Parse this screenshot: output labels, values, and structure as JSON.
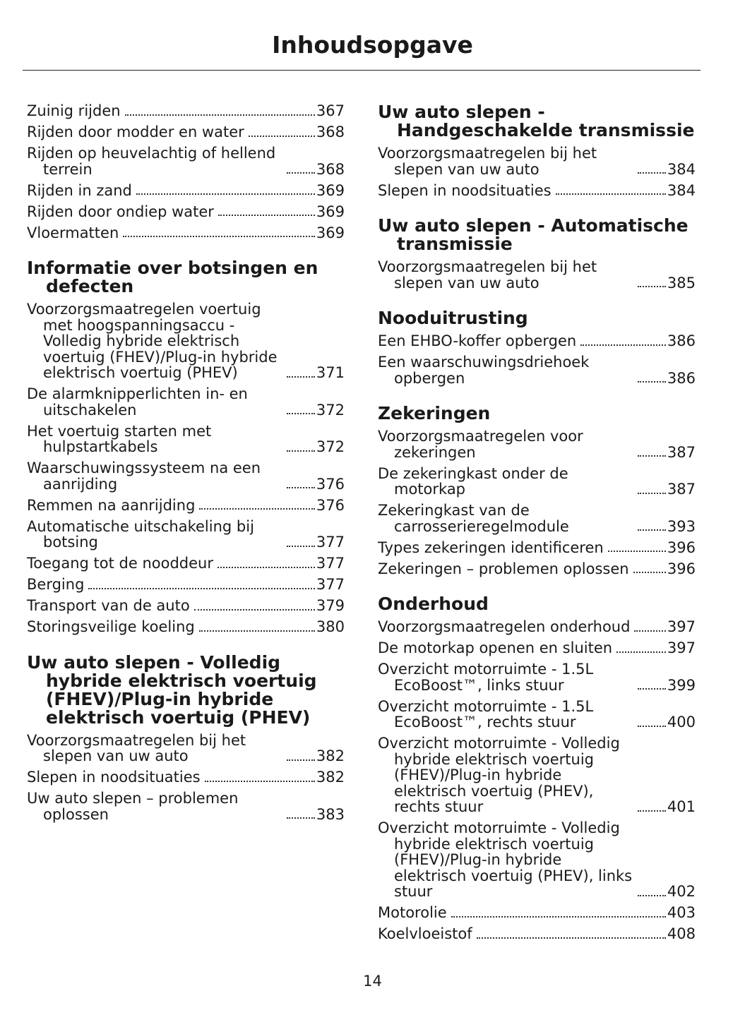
{
  "header": {
    "title": "Inhoudsopgave"
  },
  "columns": [
    {
      "sections": [
        {
          "entries": [
            {
              "title": "Zuinig rijden",
              "page": 367
            },
            {
              "title": "Rijden door modder en water",
              "page": 368
            },
            {
              "title": "Rijden op heuvelachtig of hellend terrein",
              "page": 368
            },
            {
              "title": "Rijden in zand",
              "page": 369
            },
            {
              "title": "Rijden door ondiep water",
              "page": 369
            },
            {
              "title": "Vloermatten",
              "page": 369
            }
          ]
        },
        {
          "heading": "Informatie over botsingen en defecten",
          "entries": [
            {
              "title": "Voorzorgsmaatregelen voertuig met hoogspanningsaccu - Volledig hybride elektrisch voertuig (FHEV)/Plug-in hybride elektrisch voertuig (PHEV)",
              "page": 371
            },
            {
              "title": "De alarmknipperlichten in- en uitschakelen",
              "page": 372
            },
            {
              "title": "Het voertuig starten met hulpstartkabels",
              "page": 372
            },
            {
              "title": "Waarschuwingssysteem na een aanrijding",
              "page": 376
            },
            {
              "title": "Remmen na aanrijding",
              "page": 376
            },
            {
              "title": "Automatische uitschakeling bij botsing",
              "page": 377
            },
            {
              "title": "Toegang tot de nooddeur",
              "page": 377
            },
            {
              "title": "Berging",
              "page": 377
            },
            {
              "title": "Transport van de auto",
              "page": 379
            },
            {
              "title": "Storingsveilige koeling",
              "page": 380
            }
          ]
        },
        {
          "heading": "Uw auto slepen - Volledig hybride elektrisch voertuig (FHEV)/Plug-in hybride elektrisch voertuig (PHEV)",
          "entries": [
            {
              "title": "Voorzorgsmaatregelen bij het slepen van uw auto",
              "page": 382
            },
            {
              "title": "Slepen in noodsituaties",
              "page": 382
            },
            {
              "title": "Uw auto slepen – problemen oplossen",
              "page": 383
            }
          ]
        }
      ]
    },
    {
      "sections": [
        {
          "heading": "Uw auto slepen - Handgeschakelde transmissie",
          "entries": [
            {
              "title": "Voorzorgsmaatregelen bij het slepen van uw auto",
              "page": 384
            },
            {
              "title": "Slepen in noodsituaties",
              "page": 384
            }
          ]
        },
        {
          "heading": "Uw auto slepen - Automatische transmissie",
          "entries": [
            {
              "title": "Voorzorgsmaatregelen bij het slepen van uw auto",
              "page": 385
            }
          ]
        },
        {
          "heading": "Nooduitrusting",
          "entries": [
            {
              "title": "Een EHBO-koffer opbergen",
              "page": 386
            },
            {
              "title": "Een waarschuwingsdriehoek opbergen",
              "page": 386
            }
          ]
        },
        {
          "heading": "Zekeringen",
          "entries": [
            {
              "title": "Voorzorgsmaatregelen voor zekeringen",
              "page": 387
            },
            {
              "title": "De zekeringkast onder de motorkap",
              "page": 387
            },
            {
              "title": "Zekeringkast van de carrosserieregelmodule",
              "page": 393
            },
            {
              "title": "Types zekeringen identificeren",
              "page": 396
            },
            {
              "title": "Zekeringen – problemen oplossen",
              "page": 396
            }
          ]
        },
        {
          "heading": "Onderhoud",
          "entries": [
            {
              "title": "Voorzorgsmaatregelen onderhoud",
              "page": 397
            },
            {
              "title": "De motorkap openen en sluiten",
              "page": 397
            },
            {
              "title": "Overzicht motorruimte - 1.5L EcoBoost™, links stuur",
              "page": 399
            },
            {
              "title": "Overzicht motorruimte - 1.5L EcoBoost™, rechts stuur",
              "page": 400
            },
            {
              "title": "Overzicht motorruimte - Volledig hybride elektrisch voertuig (FHEV)/Plug-in hybride elektrisch voertuig (PHEV), rechts stuur",
              "page": 401
            },
            {
              "title": "Overzicht motorruimte - Volledig hybride elektrisch voertuig (FHEV)/Plug-in hybride elektrisch voertuig (PHEV), links stuur",
              "page": 402
            },
            {
              "title": "Motorolie",
              "page": 403
            },
            {
              "title": "Koelvloeistof",
              "page": 408
            }
          ]
        }
      ]
    }
  ],
  "footer": {
    "page_number": 14
  }
}
